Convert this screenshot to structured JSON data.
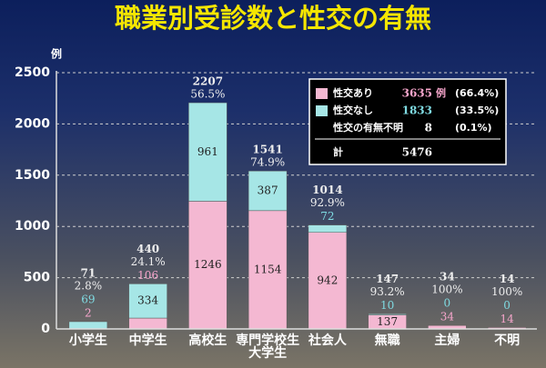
{
  "chart_data": {
    "type": "stacked-bar",
    "title": "職業別受診数と性交の有無",
    "y_label": "例",
    "categories": [
      "小学生",
      "中学生",
      "高校生",
      "専門学校生\n大学生",
      "社会人",
      "無職",
      "主婦",
      "不明"
    ],
    "series": [
      {
        "name": "性交あり",
        "color": "#f4b8d2",
        "label_color": "#f7a6cc",
        "values": [
          2,
          106,
          1246,
          1154,
          942,
          137,
          34,
          14
        ],
        "count": 3635,
        "unit": "例",
        "share": "(66.4%)"
      },
      {
        "name": "性交なし",
        "color": "#a6e6e6",
        "label_color": "#7fdbe2",
        "values": [
          69,
          334,
          961,
          387,
          72,
          10,
          0,
          0
        ],
        "count": 1833,
        "share": "(33.5%)"
      }
    ],
    "totals": [
      71,
      440,
      2207,
      1541,
      1014,
      147,
      34,
      14
    ],
    "rates": [
      "2.8%",
      "24.1%",
      "56.5%",
      "74.9%",
      "92.9%",
      "93.2%",
      "100%",
      "100%"
    ],
    "unknown": {
      "name": "性交の有無不明",
      "count": 8,
      "share": "(0.1%)"
    },
    "grand_total": {
      "name": "計",
      "count": 5476
    },
    "ylim": [
      0,
      2500
    ],
    "yticks": [
      0,
      500,
      1000,
      1500,
      2000,
      2500
    ],
    "grid": true
  }
}
